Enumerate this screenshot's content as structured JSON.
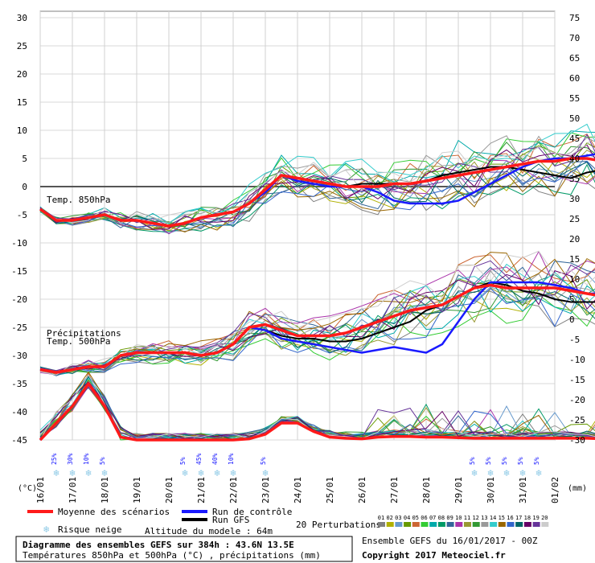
{
  "chart_data": {
    "type": "line",
    "title": "Diagramme des ensembles GEFS sur 384h : 43.6N 13.5E",
    "subtitle": "Températures 850hPa et 500hPa (°C) , précipitations (mm)",
    "source": "Ensemble GEFS du 16/01/2017 - 00Z",
    "copyright": "Copyright 2017 Meteociel.fr",
    "altitude": "Altitude du modele : 64m",
    "left_axis": {
      "unit": "(°C)",
      "min": -45,
      "max": 30,
      "step": 5
    },
    "right_axis": {
      "unit": "(mm)",
      "min": -30,
      "max": 75,
      "step": 5
    },
    "x_days": [
      "16/01",
      "17/01",
      "18/01",
      "19/01",
      "20/01",
      "21/01",
      "22/01",
      "23/01",
      "24/01",
      "25/01",
      "26/01",
      "27/01",
      "28/01",
      "29/01",
      "30/01",
      "31/01",
      "01/02"
    ],
    "x_step_hours": 12,
    "section_labels": {
      "t850": "Temp. 850hPa",
      "precip": "Précipitations",
      "t500": "Temp. 500hPa"
    },
    "legend": {
      "mean": "Moyenne des scénarios",
      "control": "Run de contrôle",
      "gfs": "Run GFS",
      "snow": "Risque neige",
      "perturbations": "20 Perturbations",
      "pert_ids": [
        "01",
        "02",
        "03",
        "04",
        "05",
        "06",
        "07",
        "08",
        "09",
        "10",
        "11",
        "12",
        "13",
        "14",
        "15",
        "16",
        "17",
        "18",
        "19",
        "20"
      ]
    },
    "colors": {
      "mean": "#ff1a1a",
      "control": "#1a1aff",
      "gfs": "#000000",
      "snow": "#8ecae6",
      "perturbations": [
        "#808080",
        "#b0b000",
        "#6699cc",
        "#669900",
        "#cc6633",
        "#33cc33",
        "#00aaaa",
        "#009966",
        "#336699",
        "#aa33aa",
        "#999933",
        "#339933",
        "#999999",
        "#33cccc",
        "#996600",
        "#3366cc",
        "#006666",
        "#660066",
        "#663399",
        "#cccccc"
      ]
    },
    "snow_risk": [
      {
        "x": 1,
        "pct": "25%"
      },
      {
        "x": 2,
        "pct": "30%"
      },
      {
        "x": 3,
        "pct": "10%"
      },
      {
        "x": 4,
        "pct": "5%"
      },
      {
        "x": 9,
        "pct": "5%"
      },
      {
        "x": 10,
        "pct": "45%"
      },
      {
        "x": 11,
        "pct": "40%"
      },
      {
        "x": 12,
        "pct": "10%"
      },
      {
        "x": 14,
        "pct": "5%"
      },
      {
        "x": 27,
        "pct": "5%"
      },
      {
        "x": 28,
        "pct": "5%"
      },
      {
        "x": 29,
        "pct": "5%"
      },
      {
        "x": 30,
        "pct": "5%"
      },
      {
        "x": 31,
        "pct": "5%"
      },
      {
        "x": 35,
        "pct": "5%"
      },
      {
        "x": 37,
        "pct": "5%"
      }
    ],
    "series": [
      {
        "name": "Moyenne des scénarios",
        "t850": [
          -4,
          -6,
          -6,
          -5.5,
          -5,
          -6,
          -6,
          -6.5,
          -7,
          -6.5,
          -5.5,
          -5,
          -4.5,
          -3,
          -0.5,
          2,
          1.5,
          1,
          0.5,
          0,
          0,
          0,
          0.5,
          0.5,
          1,
          1.5,
          2,
          2.5,
          3,
          3.5,
          4,
          4.5,
          4.5,
          5,
          5,
          4.5,
          4.5,
          4.5,
          4.5,
          4,
          4,
          4,
          3.5,
          3.5,
          3.5,
          3.5,
          3.5,
          3.5,
          3.5
        ],
        "t500": [
          -32.5,
          -33,
          -32.5,
          -32,
          -32,
          -30,
          -29.5,
          -29.5,
          -29.5,
          -29.5,
          -30,
          -29.5,
          -28,
          -25,
          -24.5,
          -25.5,
          -26.5,
          -26.5,
          -26.5,
          -26,
          -25,
          -24,
          -23,
          -22,
          -21.5,
          -21,
          -19.5,
          -18,
          -17.5,
          -18,
          -18,
          -18,
          -18,
          -18.5,
          -19,
          -19.5,
          -19.5,
          -20,
          -20,
          -21,
          -21,
          -21,
          -21,
          -21,
          -21,
          -21,
          -21,
          -21,
          -21
        ],
        "precip": [
          0,
          3,
          6,
          10,
          6,
          0.5,
          0,
          0,
          0,
          0,
          0,
          0,
          0,
          0.2,
          1,
          3,
          3,
          1.5,
          0.5,
          0.3,
          0.2,
          0.5,
          0.6,
          0.6,
          0.5,
          0.5,
          0.4,
          0.3,
          0.3,
          0.3,
          0.3,
          0.3,
          0.3,
          0.3,
          0.3,
          0.2,
          0.2,
          0.3,
          0.3,
          0.3,
          0.5,
          0.3,
          0.3,
          0.3,
          0.3,
          0.3,
          0.3,
          0.3,
          0.3
        ]
      },
      {
        "name": "Run de contrôle",
        "t850": [
          -4,
          -6,
          -6,
          -5.5,
          -5,
          -6,
          -6,
          -6.5,
          -7,
          -6.5,
          -5.5,
          -5,
          -4.5,
          -3,
          -1,
          2,
          1,
          0.5,
          0,
          0,
          0,
          -1,
          -2.5,
          -3,
          -3,
          -3,
          -2.5,
          -1,
          0.5,
          2,
          3.5,
          4.5,
          5,
          5,
          5.5,
          6,
          6,
          6,
          6,
          5.5,
          5,
          4,
          3.5,
          3.5,
          3.5,
          3.5,
          3.5,
          3.5,
          3.5
        ],
        "t500": [
          -32.5,
          -33,
          -32.5,
          -32,
          -32,
          -30,
          -29.5,
          -29.5,
          -29.5,
          -29.5,
          -30,
          -29.5,
          -28,
          -25,
          -25.5,
          -27,
          -27.5,
          -28,
          -28.5,
          -29,
          -29.5,
          -29,
          -28.5,
          -29,
          -29.5,
          -28,
          -24,
          -20,
          -17,
          -17,
          -17,
          -17,
          -17.5,
          -18,
          -19,
          -19,
          -19,
          -19,
          -19.5,
          -19.5,
          -19.5,
          -19.5,
          -19.5,
          -19.5,
          -19.5,
          -19.5,
          -19.5,
          -19.5,
          -18.5
        ],
        "precip": [
          0,
          3,
          6,
          10,
          6,
          0.5,
          0,
          0,
          0,
          0,
          0,
          0,
          0,
          0.2,
          1,
          3,
          3,
          1.5,
          0.5,
          0.3,
          0.2,
          0.5,
          0.6,
          0.6,
          0.5,
          0.5,
          0.4,
          0.3,
          0.3,
          0.3,
          0.3,
          0.3,
          0.3,
          0.3,
          0.3,
          0.2,
          0.2,
          0.3,
          0.3,
          0.3,
          0.5,
          0.3,
          0.3,
          0.3,
          0.3,
          0.3,
          0.3,
          0.3,
          0.3
        ]
      },
      {
        "name": "Run GFS",
        "t850": [
          -4,
          -6,
          -6,
          -5.5,
          -5,
          -6,
          -6,
          -6.5,
          -7,
          -6.5,
          -5.5,
          -5,
          -4.5,
          -3,
          -0.5,
          2,
          1,
          0.5,
          0,
          0,
          0.5,
          0.5,
          0.5,
          0.5,
          1,
          2,
          2.5,
          3,
          3.5,
          3.5,
          3,
          2.5,
          2,
          1.5,
          2.5,
          3,
          4,
          5,
          6,
          5.5,
          4.5,
          4,
          4.5,
          4.5,
          4.5,
          4.5,
          4.5,
          4.5,
          4.5
        ],
        "t500": [
          -32.5,
          -33,
          -32.5,
          -32,
          -32,
          -30,
          -29.5,
          -29.5,
          -29.5,
          -29.5,
          -30,
          -29.5,
          -28,
          -25,
          -25.5,
          -26.5,
          -27,
          -27,
          -27.5,
          -27.5,
          -27,
          -26,
          -25,
          -24,
          -22,
          -21,
          -19.5,
          -18,
          -17,
          -17.5,
          -18.5,
          -19,
          -20,
          -20.5,
          -20.5,
          -20.5,
          -20,
          -20,
          -20,
          -20,
          -20,
          -20,
          -20,
          -20,
          -20,
          -20,
          -20,
          -20,
          -20
        ],
        "precip": [
          0,
          3,
          6,
          10,
          6,
          0.5,
          0,
          0,
          0,
          0,
          0,
          0,
          0,
          0.2,
          1,
          3,
          3,
          1.5,
          0.5,
          0.3,
          0.2,
          0.5,
          0.6,
          0.6,
          0.5,
          0.5,
          0.4,
          0.3,
          0.3,
          0.3,
          0.3,
          0.3,
          0.3,
          0.3,
          0.3,
          0.2,
          0.2,
          0.3,
          0.3,
          0.3,
          0.5,
          0.3,
          0.3,
          0.3,
          0.3,
          0.3,
          0.3,
          0.3,
          0.3
        ]
      }
    ]
  }
}
